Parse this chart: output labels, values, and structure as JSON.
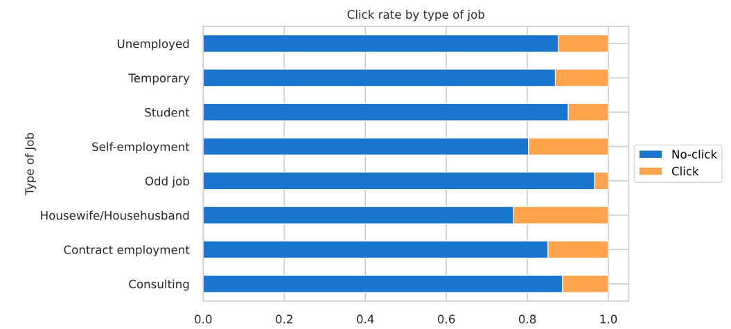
{
  "chart_data": {
    "type": "bar",
    "orientation": "horizontal",
    "stacked": true,
    "title": "Click rate by type of job",
    "ylabel": "Type of Job",
    "categories": [
      "Unemployed",
      "Temporary",
      "Student",
      "Self-employment",
      "Odd job",
      "Housewife/Househusband",
      "Contract employment",
      "Consulting"
    ],
    "series": [
      {
        "name": "No-click",
        "color": "#1a75cf",
        "values": [
          0.876,
          0.869,
          0.901,
          0.803,
          0.966,
          0.766,
          0.851,
          0.887
        ]
      },
      {
        "name": "Click",
        "color": "#ffa34d",
        "values": [
          0.124,
          0.131,
          0.099,
          0.197,
          0.034,
          0.234,
          0.149,
          0.113
        ]
      }
    ],
    "xlim": [
      0,
      1.05
    ],
    "xticks": [
      {
        "value": 0,
        "label": "0.0"
      },
      0.2,
      0.4,
      0.6,
      0.8,
      {
        "value": 1,
        "label": "1.0"
      }
    ],
    "grid": true,
    "legend": "right"
  }
}
